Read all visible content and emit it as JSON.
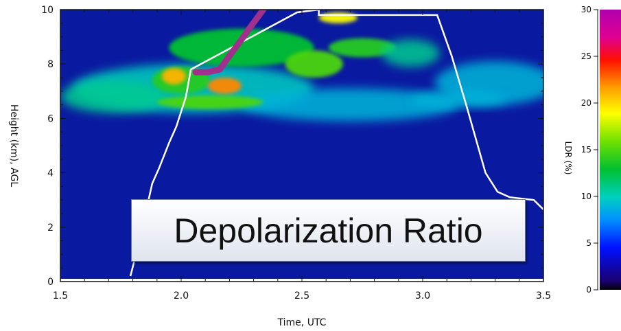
{
  "chart_data": {
    "type": "heatmap",
    "xlabel": "Time, UTC",
    "ylabel": "Height (km), AGL",
    "xlim": [
      1.5,
      3.5
    ],
    "ylim": [
      0,
      10
    ],
    "x_ticks": [
      "1.5",
      "2.0",
      "2.5",
      "3.0",
      "3.5"
    ],
    "y_ticks": [
      "0",
      "2",
      "4",
      "6",
      "8",
      "10"
    ],
    "colorbar": {
      "label": "LDR (%)",
      "range": [
        0,
        30
      ],
      "ticks": [
        "0",
        "5",
        "10",
        "15",
        "20",
        "25",
        "30"
      ]
    },
    "annotation": "Depolarization Ratio",
    "colors": {
      "background": "#0a1aa0",
      "white_line": "#ffffff",
      "magenta_track": "#a0308c"
    },
    "series": [
      {
        "style": "white-line",
        "points": [
          [
            1.79,
            0.2
          ],
          [
            1.83,
            1.6
          ],
          [
            1.86,
            2.8
          ],
          [
            1.88,
            3.6
          ],
          [
            1.91,
            4.2
          ],
          [
            1.95,
            5.1
          ],
          [
            1.98,
            5.7
          ],
          [
            2.02,
            6.8
          ],
          [
            2.04,
            7.8
          ],
          [
            2.48,
            9.9
          ],
          [
            2.57,
            10.0
          ],
          [
            2.57,
            9.8
          ],
          [
            3.06,
            9.8
          ],
          [
            3.12,
            8.3
          ],
          [
            3.18,
            6.5
          ],
          [
            3.26,
            4.0
          ],
          [
            3.31,
            3.3
          ],
          [
            3.36,
            3.1
          ],
          [
            3.46,
            3.0
          ],
          [
            3.5,
            2.65
          ]
        ]
      },
      {
        "style": "magenta-track",
        "points": [
          [
            2.06,
            7.7
          ],
          [
            2.11,
            7.7
          ],
          [
            2.16,
            7.8
          ],
          [
            2.2,
            8.3
          ],
          [
            2.25,
            8.9
          ],
          [
            2.29,
            9.4
          ],
          [
            2.34,
            10.0
          ]
        ]
      }
    ],
    "ldr_regions": [
      {
        "x": 2.05,
        "y": 7.1,
        "rx": 0.5,
        "ry": 0.9,
        "ldr": 10
      },
      {
        "x": 1.72,
        "y": 6.8,
        "rx": 0.22,
        "ry": 0.6,
        "ldr": 11
      },
      {
        "x": 2.7,
        "y": 6.5,
        "rx": 0.45,
        "ry": 0.6,
        "ldr": 9
      },
      {
        "x": 3.3,
        "y": 7.3,
        "rx": 0.25,
        "ry": 0.8,
        "ldr": 9
      },
      {
        "x": 2.25,
        "y": 8.6,
        "rx": 0.3,
        "ry": 0.7,
        "ldr": 13
      },
      {
        "x": 2.0,
        "y": 7.4,
        "rx": 0.12,
        "ry": 0.5,
        "ldr": 14
      },
      {
        "x": 2.12,
        "y": 6.6,
        "rx": 0.22,
        "ry": 0.25,
        "ldr": 15
      },
      {
        "x": 1.97,
        "y": 7.55,
        "rx": 0.05,
        "ry": 0.3,
        "ldr": 21
      },
      {
        "x": 2.18,
        "y": 7.2,
        "rx": 0.07,
        "ry": 0.3,
        "ldr": 22
      },
      {
        "x": 2.55,
        "y": 8.0,
        "rx": 0.12,
        "ry": 0.5,
        "ldr": 15
      },
      {
        "x": 2.75,
        "y": 8.6,
        "rx": 0.14,
        "ry": 0.35,
        "ldr": 14
      },
      {
        "x": 2.95,
        "y": 8.4,
        "rx": 0.12,
        "ry": 0.5,
        "ldr": 11
      },
      {
        "x": 3.15,
        "y": 6.7,
        "rx": 0.2,
        "ry": 0.3,
        "ldr": 9
      },
      {
        "x": 2.65,
        "y": 9.7,
        "rx": 0.08,
        "ry": 0.2,
        "ldr": 19
      }
    ]
  }
}
